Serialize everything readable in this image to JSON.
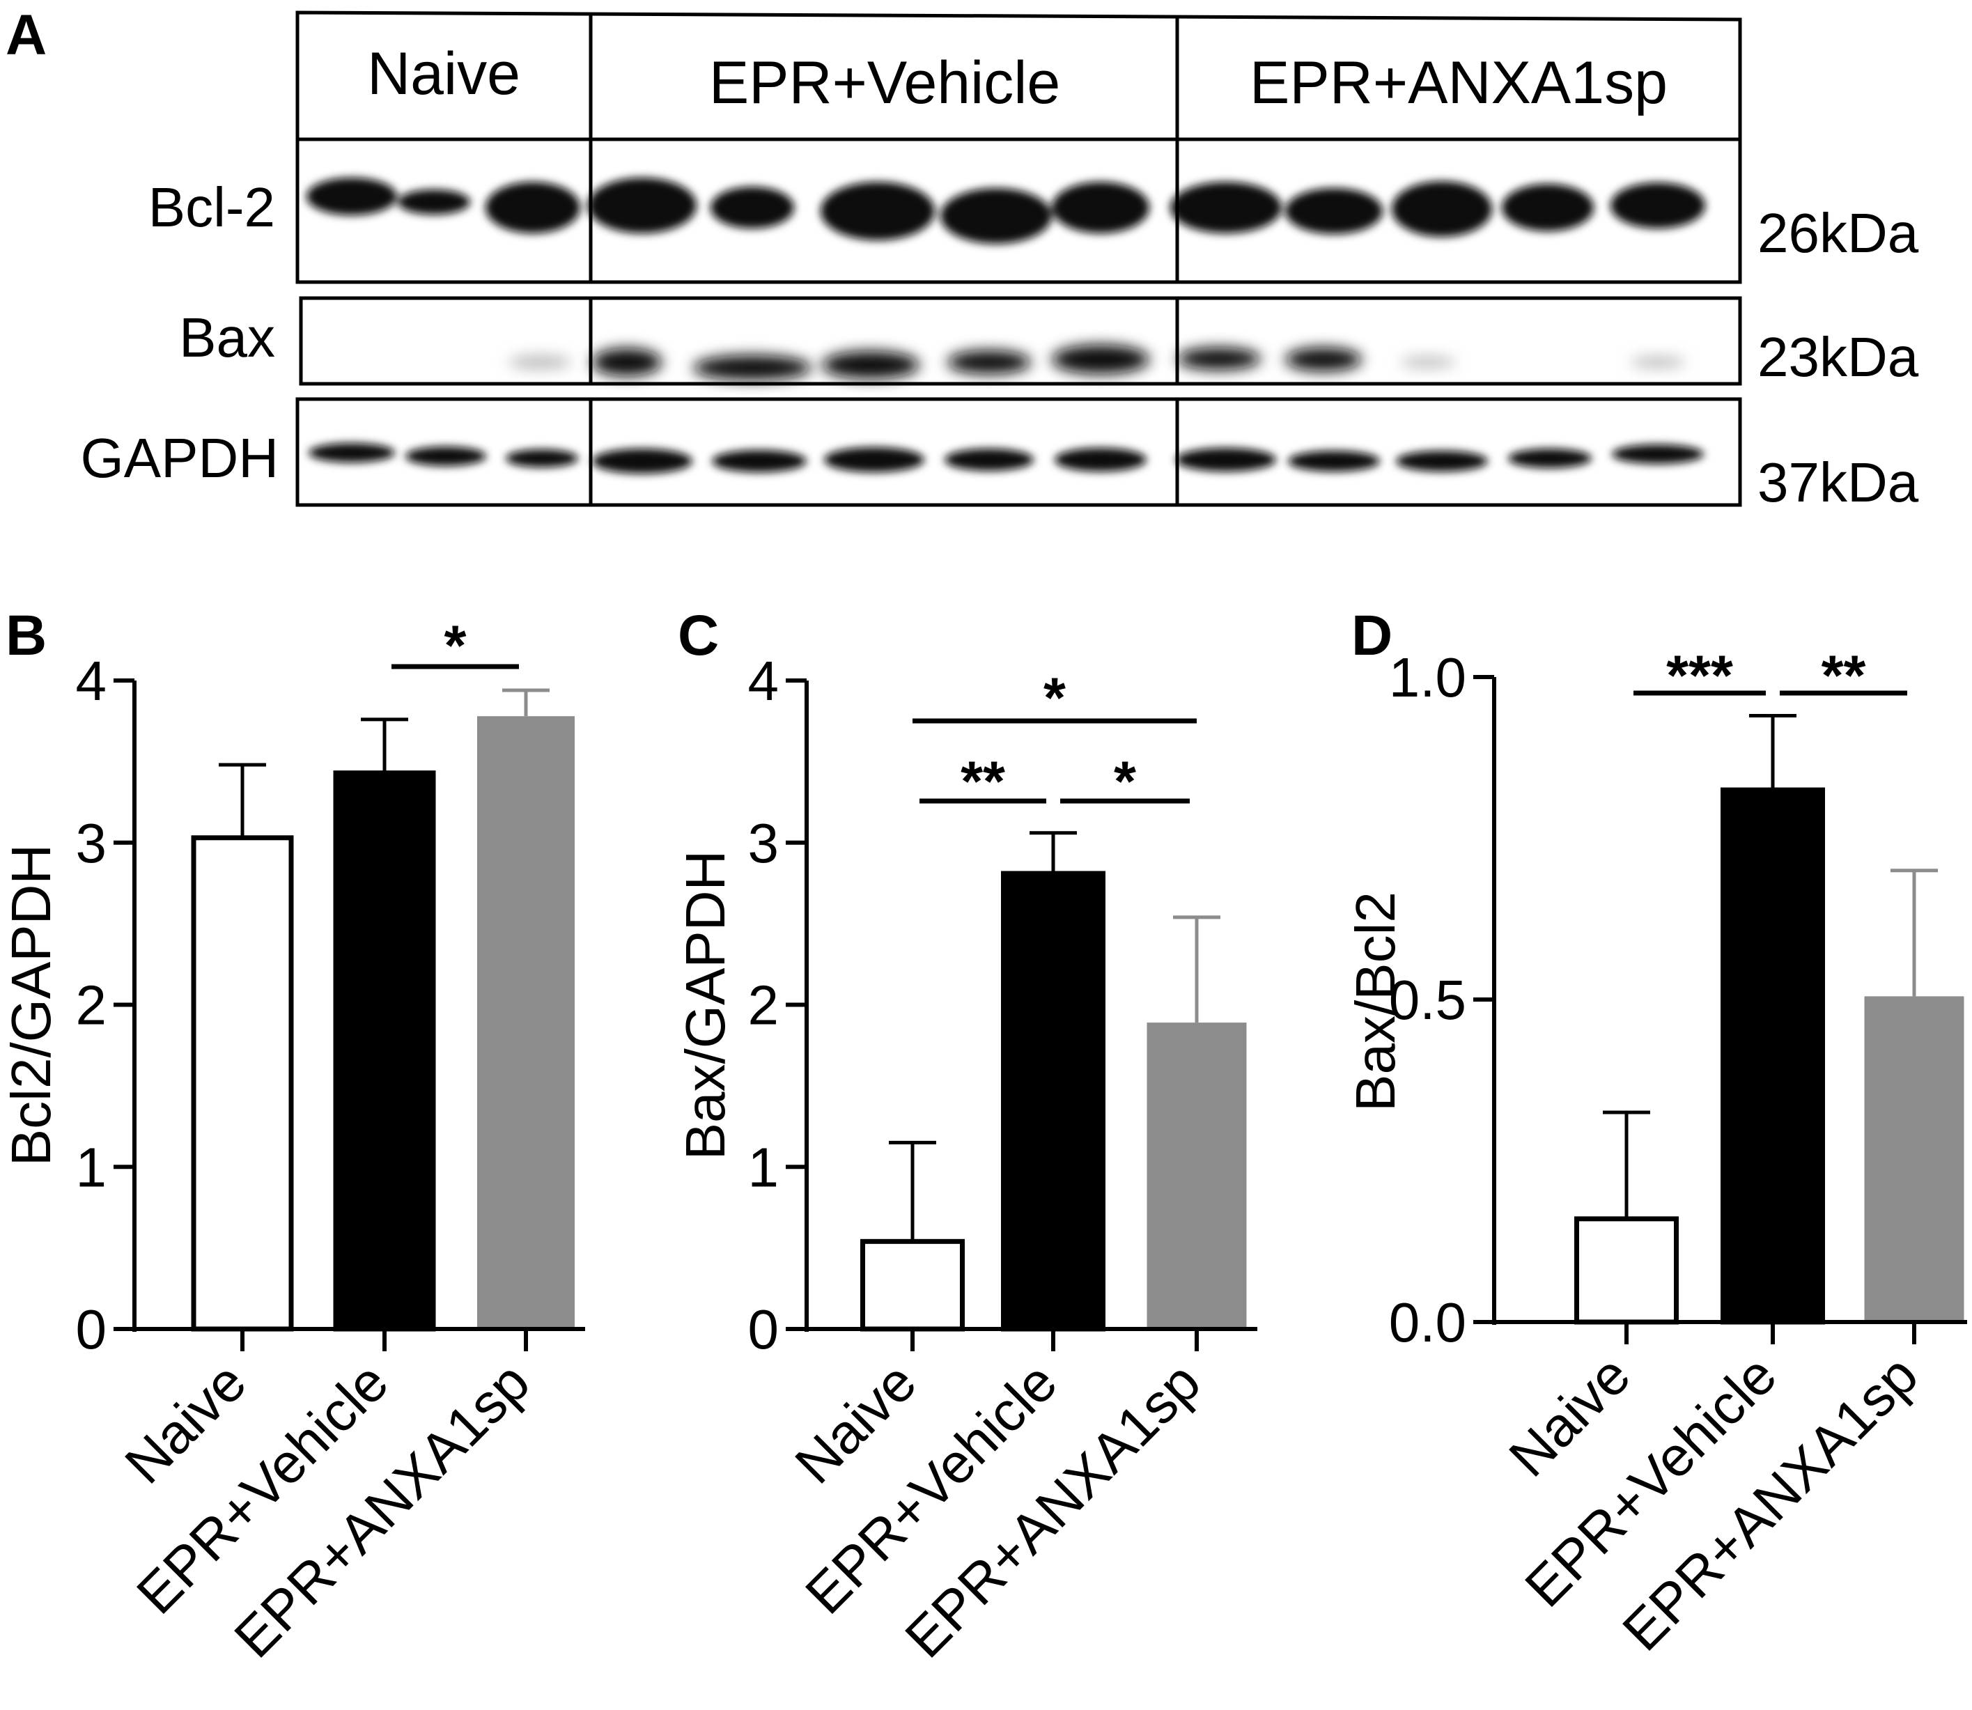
{
  "panel_letters": [
    "A",
    "B",
    "C",
    "D"
  ],
  "blot": {
    "groups": [
      "Naive",
      "EPR+Vehicle",
      "EPR+ANXA1sp"
    ],
    "proteins": [
      {
        "name": "Bcl-2",
        "mw": "26kDa"
      },
      {
        "name": "Bax",
        "mw": "23kDa"
      },
      {
        "name": "GAPDH",
        "mw": "37kDa"
      }
    ]
  },
  "colors": {
    "naive": "#ffffff",
    "vehicle": "#000000",
    "anxa": "#8c8c8c",
    "anxa_err": "#8c8c8c"
  },
  "chart_data": [
    {
      "type": "bar",
      "panel": "B",
      "categories": [
        "Naive",
        "EPR+Vehicle",
        "EPR+ANXA1sp"
      ],
      "values": [
        3.03,
        3.43,
        3.78
      ],
      "errors": [
        0.45,
        0.33,
        0.16
      ],
      "ylabel": "Bcl2/GAPDH",
      "ylim": [
        0,
        4
      ],
      "yticks": [
        "0",
        "1",
        "2",
        "3",
        "4"
      ],
      "significance": [
        {
          "from": 1,
          "to": 2,
          "label": "*"
        }
      ]
    },
    {
      "type": "bar",
      "panel": "C",
      "categories": [
        "Naive",
        "EPR+Vehicle",
        "EPR+ANXA1sp"
      ],
      "values": [
        0.54,
        2.81,
        1.89
      ],
      "errors": [
        0.61,
        0.25,
        0.65
      ],
      "ylabel": "Bax/GAPDH",
      "ylim": [
        0,
        4
      ],
      "yticks": [
        "0",
        "1",
        "2",
        "3",
        "4"
      ],
      "significance": [
        {
          "from": 0,
          "to": 2,
          "label": "*"
        },
        {
          "from": 0,
          "to": 1,
          "label": "**"
        },
        {
          "from": 1,
          "to": 2,
          "label": "*"
        }
      ]
    },
    {
      "type": "bar",
      "panel": "D",
      "categories": [
        "Naive",
        "EPR+Vehicle",
        "EPR+ANXA1sp"
      ],
      "values": [
        0.16,
        0.825,
        0.505
      ],
      "errors": [
        0.165,
        0.115,
        0.195
      ],
      "ylabel": "Bax/Bcl2",
      "ylim": [
        0,
        1.0
      ],
      "yticks": [
        "0.0",
        "0.5",
        "1.0"
      ],
      "significance": [
        {
          "from": 0,
          "to": 1,
          "label": "***"
        },
        {
          "from": 1,
          "to": 2,
          "label": "**"
        }
      ]
    }
  ]
}
